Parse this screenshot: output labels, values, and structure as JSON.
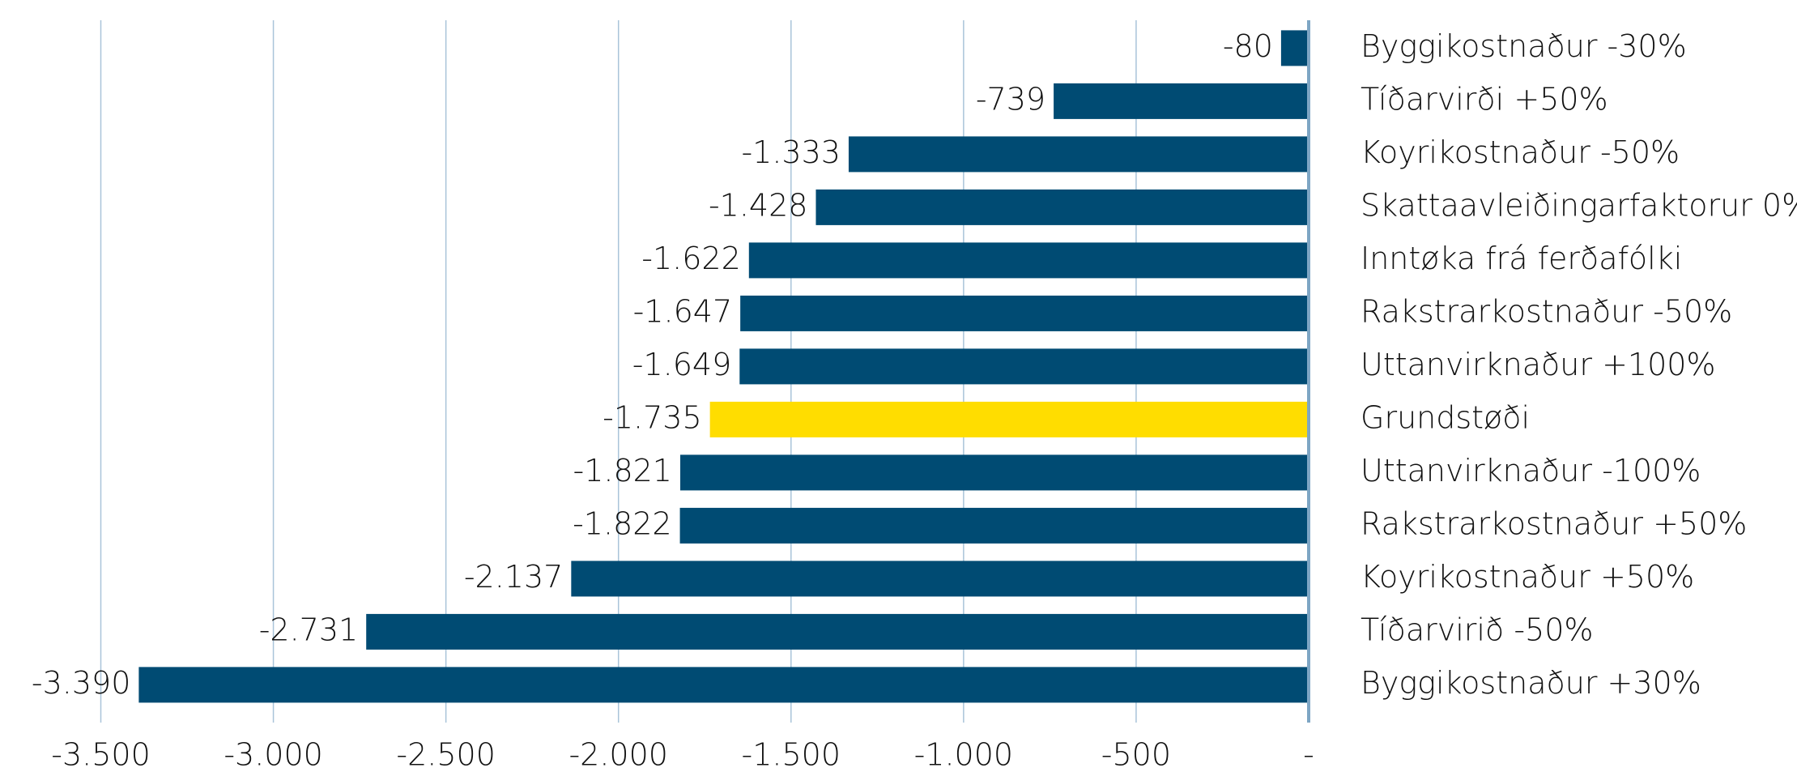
{
  "chart_data": {
    "type": "hbar",
    "categories": [
      "Byggikostnaður -30%",
      "Tíðarvirði +50%",
      "Koyrikostnaður -50%",
      "Skattaavleiðingarfaktorur 0%",
      "Inntøka frá ferðafólki",
      "Rakstrarkostnaður -50%",
      "Uttanvirknaður +100%",
      "Grundstøði",
      "Uttanvirknaður -100%",
      "Rakstrarkostnaður +50%",
      "Koyrikostnaður +50%",
      "Tíðarvirið -50%",
      "Byggikostnaður +30%"
    ],
    "values": [
      -80,
      -739,
      -1333,
      -1428,
      -1622,
      -1647,
      -1649,
      -1735,
      -1821,
      -1822,
      -2137,
      -2731,
      -3390
    ],
    "value_labels": [
      "-80",
      "-739",
      "-1.333",
      "-1.428",
      "-1.622",
      "-1.647",
      "-1.649",
      "-1.735",
      "-1.821",
      "-1.822",
      "-2.137",
      "-2.731",
      "-3.390"
    ],
    "colors": [
      "#004b73",
      "#004b73",
      "#004b73",
      "#004b73",
      "#004b73",
      "#004b73",
      "#004b73",
      "#ffdd00",
      "#004b73",
      "#004b73",
      "#004b73",
      "#004b73",
      "#004b73"
    ],
    "xlim": [
      -3500,
      0
    ],
    "xticks": [
      {
        "value": -3500,
        "label": "-3.500"
      },
      {
        "value": -3000,
        "label": "-3.000"
      },
      {
        "value": -2500,
        "label": "-2.500"
      },
      {
        "value": -2000,
        "label": "-2.000"
      },
      {
        "value": -1500,
        "label": "-1.500"
      },
      {
        "value": -1000,
        "label": "-1.000"
      },
      {
        "value": -500,
        "label": "-500"
      },
      {
        "value": 0,
        "label": "-"
      }
    ],
    "grid": true
  }
}
